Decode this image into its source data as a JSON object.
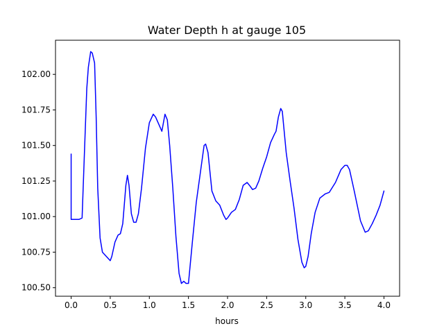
{
  "chart_data": {
    "type": "line",
    "title": "Water Depth h at gauge 105",
    "xlabel": "hours",
    "ylabel": "",
    "xlim": [
      -0.2,
      4.2
    ],
    "ylim": [
      100.44,
      102.24
    ],
    "xticks": [
      0.0,
      0.5,
      1.0,
      1.5,
      2.0,
      2.5,
      3.0,
      3.5,
      4.0
    ],
    "xtick_labels": [
      "0.0",
      "0.5",
      "1.0",
      "1.5",
      "2.0",
      "2.5",
      "3.0",
      "3.5",
      "4.0"
    ],
    "yticks": [
      100.5,
      100.75,
      101.0,
      101.25,
      101.5,
      101.75,
      102.0
    ],
    "ytick_labels": [
      "100.50",
      "100.75",
      "101.00",
      "101.25",
      "101.50",
      "101.75",
      "102.00"
    ],
    "grid": false,
    "series": [
      {
        "color": "#0000ff",
        "x": [
          0.0,
          0.0,
          0.05,
          0.1,
          0.14,
          0.17,
          0.2,
          0.22,
          0.25,
          0.27,
          0.3,
          0.32,
          0.34,
          0.37,
          0.4,
          0.45,
          0.5,
          0.52,
          0.56,
          0.6,
          0.63,
          0.66,
          0.7,
          0.72,
          0.74,
          0.77,
          0.8,
          0.83,
          0.86,
          0.9,
          0.95,
          1.0,
          1.05,
          1.08,
          1.12,
          1.16,
          1.2,
          1.23,
          1.26,
          1.3,
          1.34,
          1.38,
          1.41,
          1.44,
          1.47,
          1.5,
          1.55,
          1.6,
          1.65,
          1.7,
          1.72,
          1.75,
          1.8,
          1.85,
          1.9,
          1.95,
          1.98,
          2.0,
          2.05,
          2.1,
          2.15,
          2.2,
          2.25,
          2.28,
          2.32,
          2.36,
          2.4,
          2.45,
          2.5,
          2.55,
          2.6,
          2.62,
          2.65,
          2.68,
          2.7,
          2.75,
          2.8,
          2.85,
          2.9,
          2.95,
          2.98,
          3.0,
          3.03,
          3.07,
          3.12,
          3.18,
          3.25,
          3.3,
          3.38,
          3.45,
          3.5,
          3.53,
          3.56,
          3.62,
          3.7,
          3.76,
          3.8,
          3.85,
          3.9,
          3.95,
          4.0
        ],
        "y": [
          101.44,
          100.98,
          100.98,
          100.98,
          100.99,
          101.45,
          101.9,
          102.05,
          102.16,
          102.15,
          102.08,
          101.7,
          101.2,
          100.85,
          100.75,
          100.72,
          100.69,
          100.72,
          100.82,
          100.87,
          100.88,
          100.95,
          101.22,
          101.29,
          101.22,
          101.02,
          100.96,
          100.96,
          101.02,
          101.2,
          101.48,
          101.66,
          101.72,
          101.7,
          101.65,
          101.6,
          101.72,
          101.68,
          101.5,
          101.2,
          100.86,
          100.6,
          100.53,
          100.545,
          100.53,
          100.53,
          100.82,
          101.1,
          101.3,
          101.5,
          101.51,
          101.45,
          101.18,
          101.11,
          101.08,
          101.01,
          100.98,
          100.99,
          101.03,
          101.05,
          101.12,
          101.22,
          101.24,
          101.22,
          101.19,
          101.2,
          101.25,
          101.34,
          101.42,
          101.52,
          101.58,
          101.6,
          101.7,
          101.76,
          101.74,
          101.45,
          101.25,
          101.06,
          100.84,
          100.68,
          100.64,
          100.65,
          100.72,
          100.88,
          101.03,
          101.13,
          101.16,
          101.17,
          101.24,
          101.33,
          101.36,
          101.36,
          101.33,
          101.18,
          100.97,
          100.89,
          100.9,
          100.95,
          101.01,
          101.08,
          101.18
        ]
      }
    ]
  }
}
